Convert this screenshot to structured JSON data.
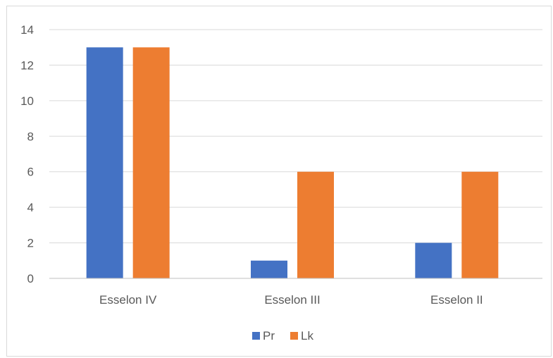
{
  "chart_data": {
    "type": "bar",
    "categories": [
      "Esselon IV",
      "Esselon III",
      "Esselon II"
    ],
    "series": [
      {
        "name": "Pr",
        "values": [
          13,
          1,
          2
        ],
        "color": "#4472c4"
      },
      {
        "name": "Lk",
        "values": [
          13,
          6,
          6
        ],
        "color": "#ed7d31"
      }
    ],
    "ylim": [
      0,
      14
    ],
    "yticks": [
      0,
      2,
      4,
      6,
      8,
      10,
      12,
      14
    ],
    "grid": true,
    "legend_position": "bottom",
    "gridline_color": "#d9d9d9",
    "axis_color": "#bfbfbf"
  }
}
